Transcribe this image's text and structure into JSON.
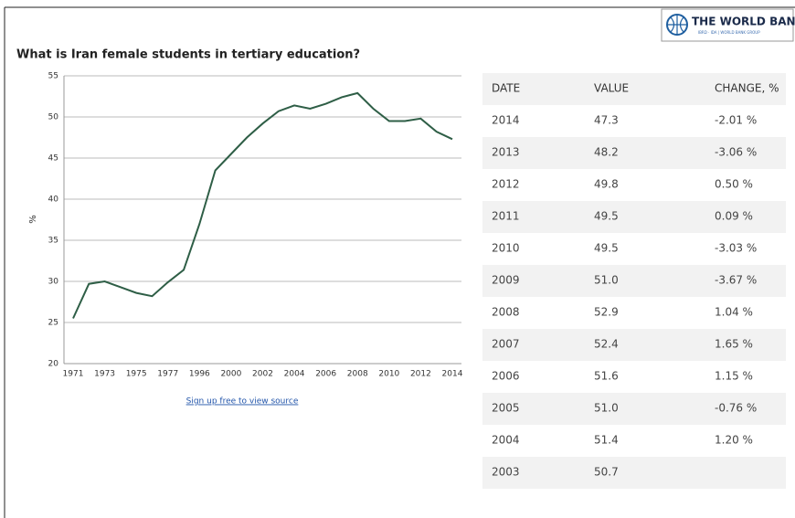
{
  "header": {
    "logo_title": "THE WORLD BANK",
    "logo_subtitle": "IBRD · IDA | WORLD BANK GROUP"
  },
  "chart_data": {
    "type": "line",
    "title": "What is Iran female students in tertiary education?",
    "y_label": "%",
    "categories": [
      "1971",
      null,
      "1973",
      null,
      "1975",
      null,
      "1977",
      null,
      "1996",
      null,
      "2000",
      null,
      "2002",
      null,
      "2004",
      null,
      "2006",
      null,
      "2008",
      null,
      "2010",
      null,
      "2012",
      null,
      "2014"
    ],
    "series": [
      {
        "color": "#2e5e46",
        "values": [
          25.5,
          29.7,
          30.0,
          29.3,
          28.6,
          28.2,
          29.9,
          31.4,
          37.0,
          43.5,
          45.5,
          47.5,
          49.2,
          50.7,
          51.4,
          51.0,
          51.6,
          52.4,
          52.9,
          51.0,
          49.5,
          49.5,
          49.8,
          48.2,
          47.3
        ]
      }
    ],
    "ylim": [
      20,
      55
    ],
    "yticks": [
      20,
      25,
      30,
      35,
      40,
      45,
      50,
      55
    ],
    "grid": true
  },
  "link": "Sign up free to view source",
  "table": {
    "columns": [
      "DATE",
      "VALUE",
      "CHANGE, %"
    ],
    "rows": [
      [
        "2014",
        "47.3",
        "-2.01 %"
      ],
      [
        "2013",
        "48.2",
        "-3.06 %"
      ],
      [
        "2012",
        "49.8",
        "0.50 %"
      ],
      [
        "2011",
        "49.5",
        "0.09 %"
      ],
      [
        "2010",
        "49.5",
        "-3.03 %"
      ],
      [
        "2009",
        "51.0",
        "-3.67 %"
      ],
      [
        "2008",
        "52.9",
        "1.04 %"
      ],
      [
        "2007",
        "52.4",
        "1.65 %"
      ],
      [
        "2006",
        "51.6",
        "1.15 %"
      ],
      [
        "2005",
        "51.0",
        "-0.76 %"
      ],
      [
        "2004",
        "51.4",
        "1.20 %"
      ],
      [
        "2003",
        "50.7",
        ""
      ]
    ]
  }
}
